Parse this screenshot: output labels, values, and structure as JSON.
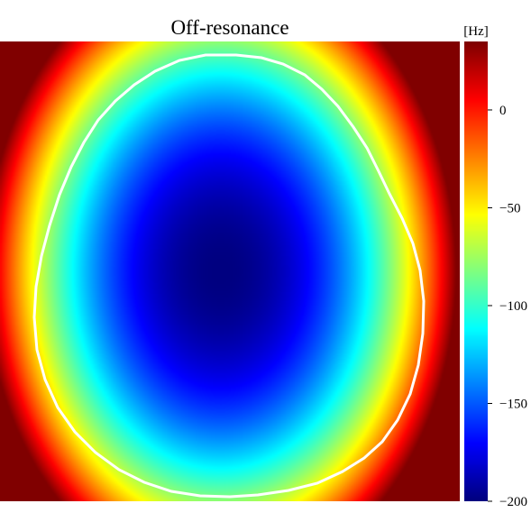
{
  "chart_data": {
    "type": "heatmap",
    "title": "Off-resonance",
    "colorbar": {
      "unit_label": "[Hz]",
      "vmin": -200,
      "vmax": 35,
      "ticks": [
        {
          "value": 0,
          "label": "0"
        },
        {
          "value": -50,
          "label": "−50"
        },
        {
          "value": -100,
          "label": "−100"
        },
        {
          "value": -150,
          "label": "−150"
        },
        {
          "value": -200,
          "label": "−200"
        }
      ],
      "colormap": "jet"
    },
    "field": {
      "min_value": -200,
      "center_value": -200,
      "edge_value_at_corners": 35,
      "description_shape": "elliptical minimum near image center, values rising to the corners"
    },
    "overlay": {
      "type": "contour",
      "color": "#ffffff",
      "description_shape": "head-shaped mask outline"
    },
    "axes_visible": false,
    "grid": false
  }
}
